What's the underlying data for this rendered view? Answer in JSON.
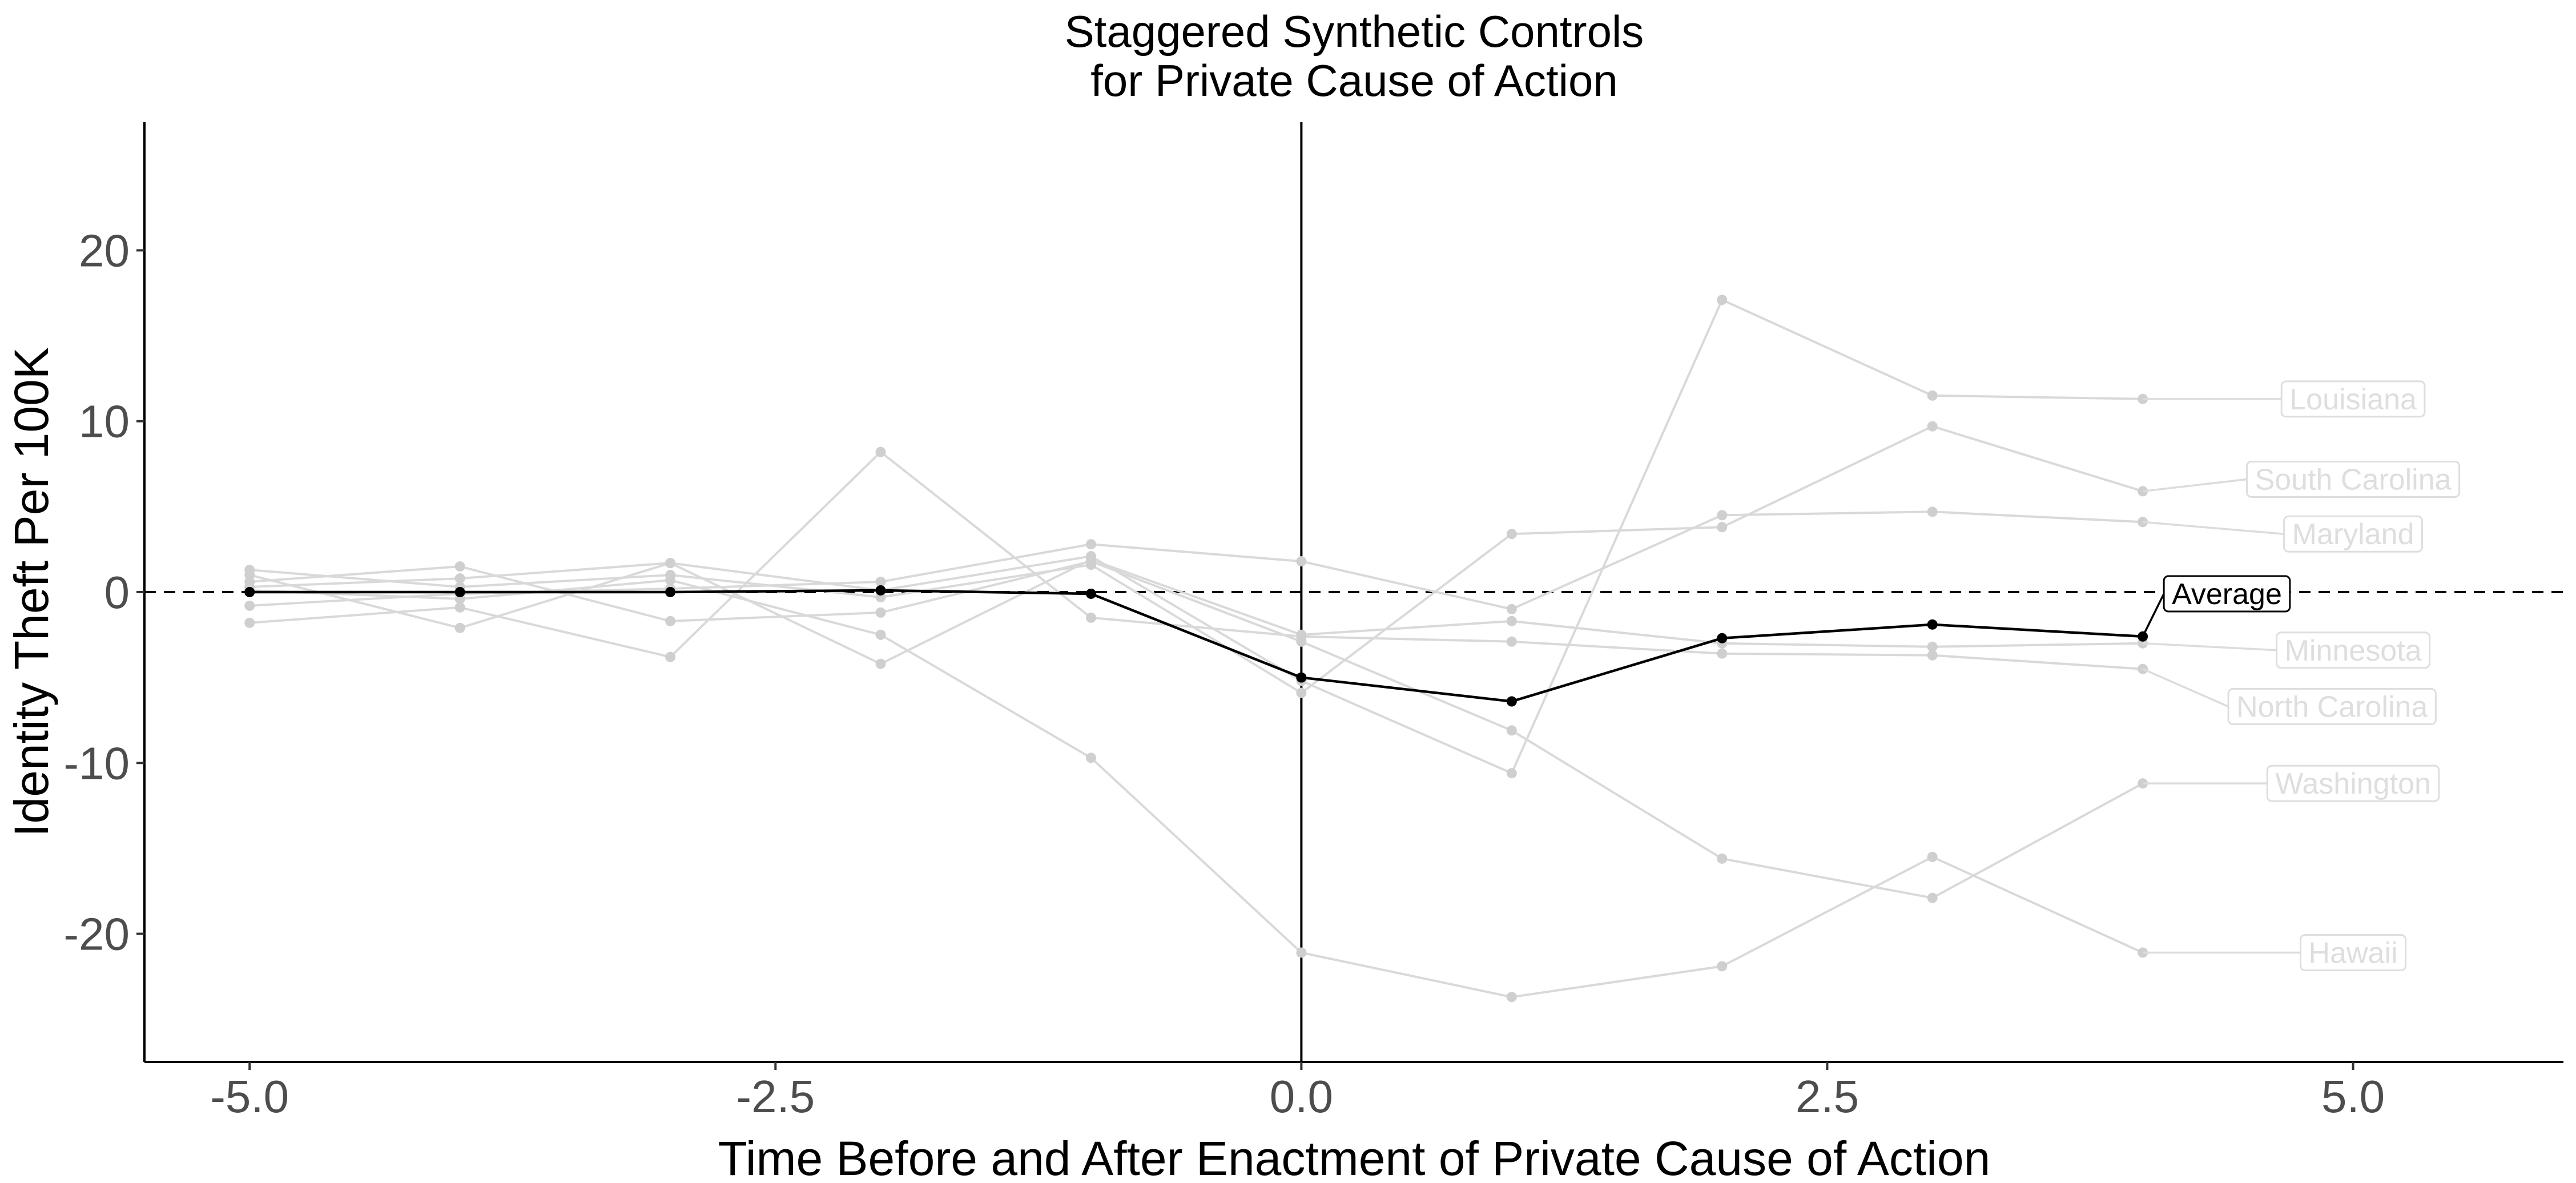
{
  "chart_data": {
    "type": "line",
    "title": "Staggered Synthetic Controls",
    "subtitle": "for Private Cause of Action",
    "xlabel": "Time Before and After Enactment of Private Cause of Action",
    "ylabel": "Identity Theft Per 100K",
    "xlim": [
      -5.5,
      6.0
    ],
    "ylim": [
      -27.5,
      27.5
    ],
    "x_ticks": [
      -5.0,
      -2.5,
      0.0,
      2.5,
      5.0
    ],
    "x_tick_labels": [
      "-5.0",
      "-2.5",
      "0.0",
      "2.5",
      "5.0"
    ],
    "y_ticks": [
      -20,
      -10,
      0,
      10,
      20
    ],
    "y_tick_labels": [
      "-20",
      "-10",
      "0",
      "10",
      "20"
    ],
    "reference_lines": [
      {
        "orientation": "horizontal",
        "value": 0,
        "style": "dashed"
      },
      {
        "orientation": "vertical",
        "value": 0,
        "style": "solid"
      }
    ],
    "grid": false,
    "legend": "none",
    "x": [
      -5,
      -4,
      -3,
      -2,
      -1,
      0,
      1,
      2,
      3,
      4
    ],
    "series": [
      {
        "name": "Louisiana",
        "values": [
          0.3,
          0.8,
          1.7,
          0.1,
          2.1,
          -5.2,
          -10.6,
          17.1,
          11.5,
          11.3
        ],
        "color": "#d9d9d9"
      },
      {
        "name": "South Carolina",
        "values": [
          1.3,
          0.3,
          1.0,
          -0.3,
          1.6,
          -5.9,
          3.4,
          3.8,
          9.7,
          5.9
        ],
        "color": "#d9d9d9"
      },
      {
        "name": "Maryland",
        "values": [
          -0.8,
          -0.1,
          0.2,
          0.6,
          2.8,
          1.8,
          -1.0,
          4.5,
          4.7,
          4.1
        ],
        "color": "#d9d9d9"
      },
      {
        "name": "Minnesota",
        "values": [
          1.0,
          -2.1,
          1.7,
          -4.2,
          1.9,
          -2.5,
          -1.7,
          -3.0,
          -3.2,
          -3.0
        ],
        "color": "#d9d9d9"
      },
      {
        "name": "North Carolina",
        "values": [
          -1.8,
          -0.9,
          -3.8,
          8.2,
          -1.5,
          -2.6,
          -2.9,
          -3.6,
          -3.7,
          -4.5
        ],
        "color": "#d9d9d9"
      },
      {
        "name": "Washington",
        "values": [
          0.6,
          1.5,
          -1.7,
          -1.2,
          1.8,
          -2.9,
          -8.1,
          -15.6,
          -17.9,
          -11.2
        ],
        "color": "#d9d9d9"
      },
      {
        "name": "Hawaii",
        "values": [
          0.1,
          -0.4,
          0.7,
          -2.5,
          -9.7,
          -21.1,
          -23.7,
          -21.9,
          -15.5,
          -21.1
        ],
        "color": "#d9d9d9"
      },
      {
        "name": "Average",
        "values": [
          0.0,
          0.0,
          0.0,
          0.1,
          -0.1,
          -5.0,
          -6.4,
          -2.7,
          -1.9,
          -2.6
        ],
        "color": "#000000"
      }
    ],
    "labels": [
      {
        "series": "Louisiana",
        "x": 5.0,
        "y": 11.3
      },
      {
        "series": "South Carolina",
        "x": 5.0,
        "y": 6.6
      },
      {
        "series": "Maryland",
        "x": 5.0,
        "y": 3.4
      },
      {
        "series": "Minnesota",
        "x": 5.0,
        "y": -3.4
      },
      {
        "series": "North Carolina",
        "x": 4.9,
        "y": -6.7
      },
      {
        "series": "Washington",
        "x": 5.0,
        "y": -11.2
      },
      {
        "series": "Hawaii",
        "x": 5.0,
        "y": -21.1
      },
      {
        "series": "Average",
        "x": 4.4,
        "y": -0.1
      }
    ]
  }
}
